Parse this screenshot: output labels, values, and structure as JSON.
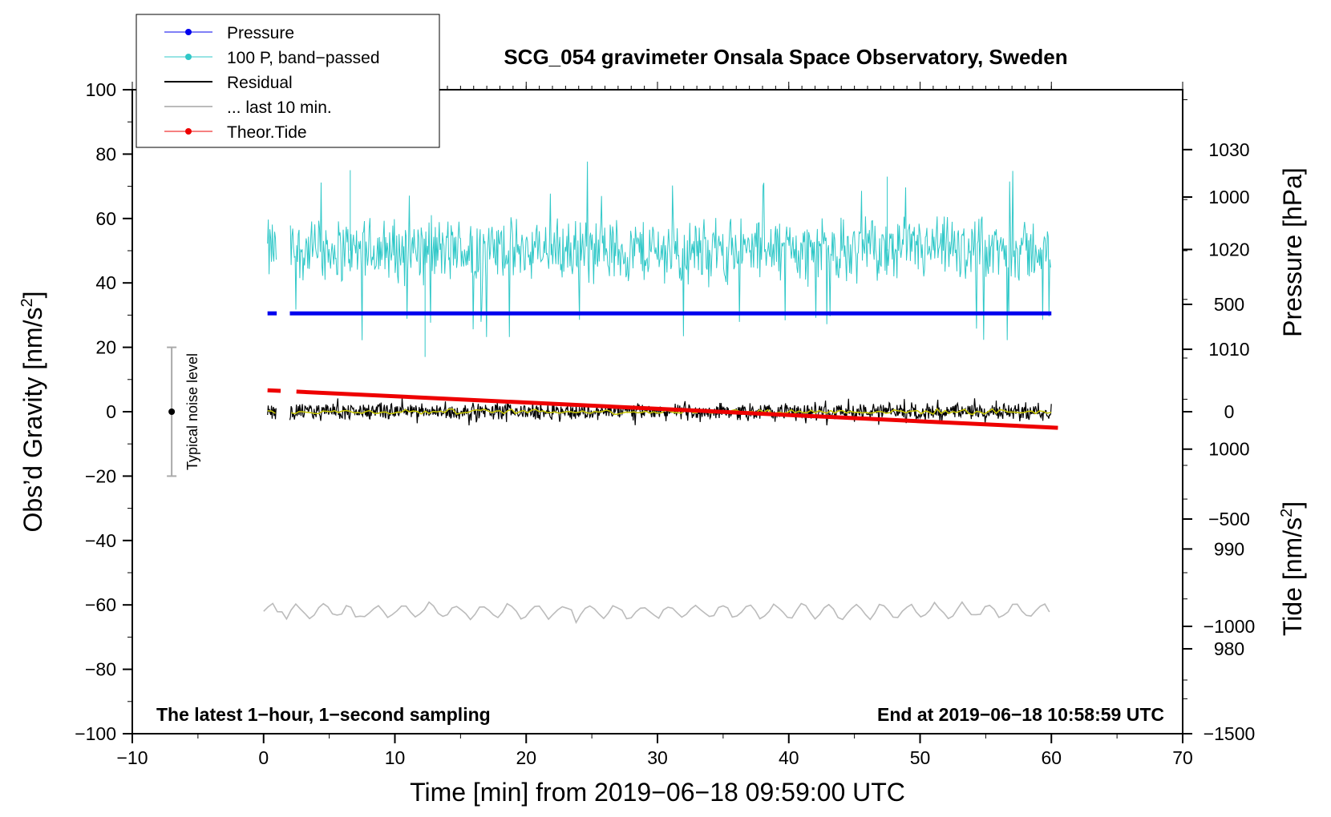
{
  "chart_data": {
    "type": "line",
    "title": "SCG_054 gravimeter Onsala Space Observatory, Sweden",
    "xlabel": "Time [min] from 2019−06−18 09:59:00 UTC",
    "ylabel_main": "Obs’d Gravity [nm/s",
    "ylabel_main_sup": "2",
    "ylabel_main_end": "]",
    "ylabel_pressure": "Pressure [hPa]",
    "ylabel_tide": "Tide [nm/s",
    "ylabel_tide_sup": "2",
    "ylabel_tide_end": "]",
    "xlim": [
      -10,
      70
    ],
    "ylim": [
      -100,
      100
    ],
    "pressure_lim": [
      971.5,
      1036
    ],
    "tide_lim": [
      -1500,
      1500
    ],
    "x_ticks": [
      "−10",
      "0",
      "10",
      "20",
      "30",
      "40",
      "50",
      "60",
      "70"
    ],
    "y_ticks": [
      "100",
      "80",
      "60",
      "40",
      "20",
      "0",
      "−20",
      "−40",
      "−60",
      "−80",
      "−100"
    ],
    "pressure_ticks": [
      "1030",
      "1020",
      "1010",
      "1000",
      "990",
      "980"
    ],
    "tide_ticks": [
      "1000",
      "500",
      "0",
      "−500",
      "−1000",
      "−1500"
    ],
    "grid": false,
    "legend_position": "top-left",
    "legend": [
      "Pressure",
      "100 P, band−passed",
      "Residual",
      "... last 10 min.",
      "Theor.Tide"
    ],
    "notes": {
      "left": "The latest 1−hour, 1−second sampling",
      "right": "End at 2019−06−18 10:58:59 UTC",
      "noise": "Typical noise level"
    },
    "noise_bar": {
      "x": -7,
      "center": 0,
      "low": -20,
      "high": 20
    },
    "gap": [
      1.0,
      2.0
    ],
    "series": [
      {
        "name": "Pressure",
        "color": "#0000ee",
        "axis": "pressure",
        "x": [
          0.3,
          60
        ],
        "y": [
          1013.6,
          1013.6
        ]
      },
      {
        "name": "100 P, band−passed",
        "color": "#30c8c8",
        "axis": "gravity",
        "x_range": [
          0.3,
          60
        ],
        "center": 50,
        "amplitude": 10,
        "extremes": [
          75,
          17
        ]
      },
      {
        "name": "Residual",
        "color": "#000000",
        "axis": "gravity",
        "x_range": [
          0.3,
          60
        ],
        "center": 0,
        "amplitude": 2.5
      },
      {
        "name": "... last 10 min.",
        "color": "#bbbbbb",
        "axis": "gravity",
        "x_range": [
          0,
          60
        ],
        "center": -62,
        "amplitude": 2
      },
      {
        "name": "Theor.Tide",
        "color": "#ee0000",
        "axis": "tide",
        "x": [
          0.3,
          60.5
        ],
        "y": [
          100,
          -75
        ]
      }
    ]
  },
  "colors": {
    "pressure": "#0000ee",
    "bandpassed": "#30c8c8",
    "residual": "#000000",
    "residual_smooth": "#c8c800",
    "last10": "#bbbbbb",
    "tide": "#ee0000",
    "noise_bar": "#aaaaaa"
  }
}
